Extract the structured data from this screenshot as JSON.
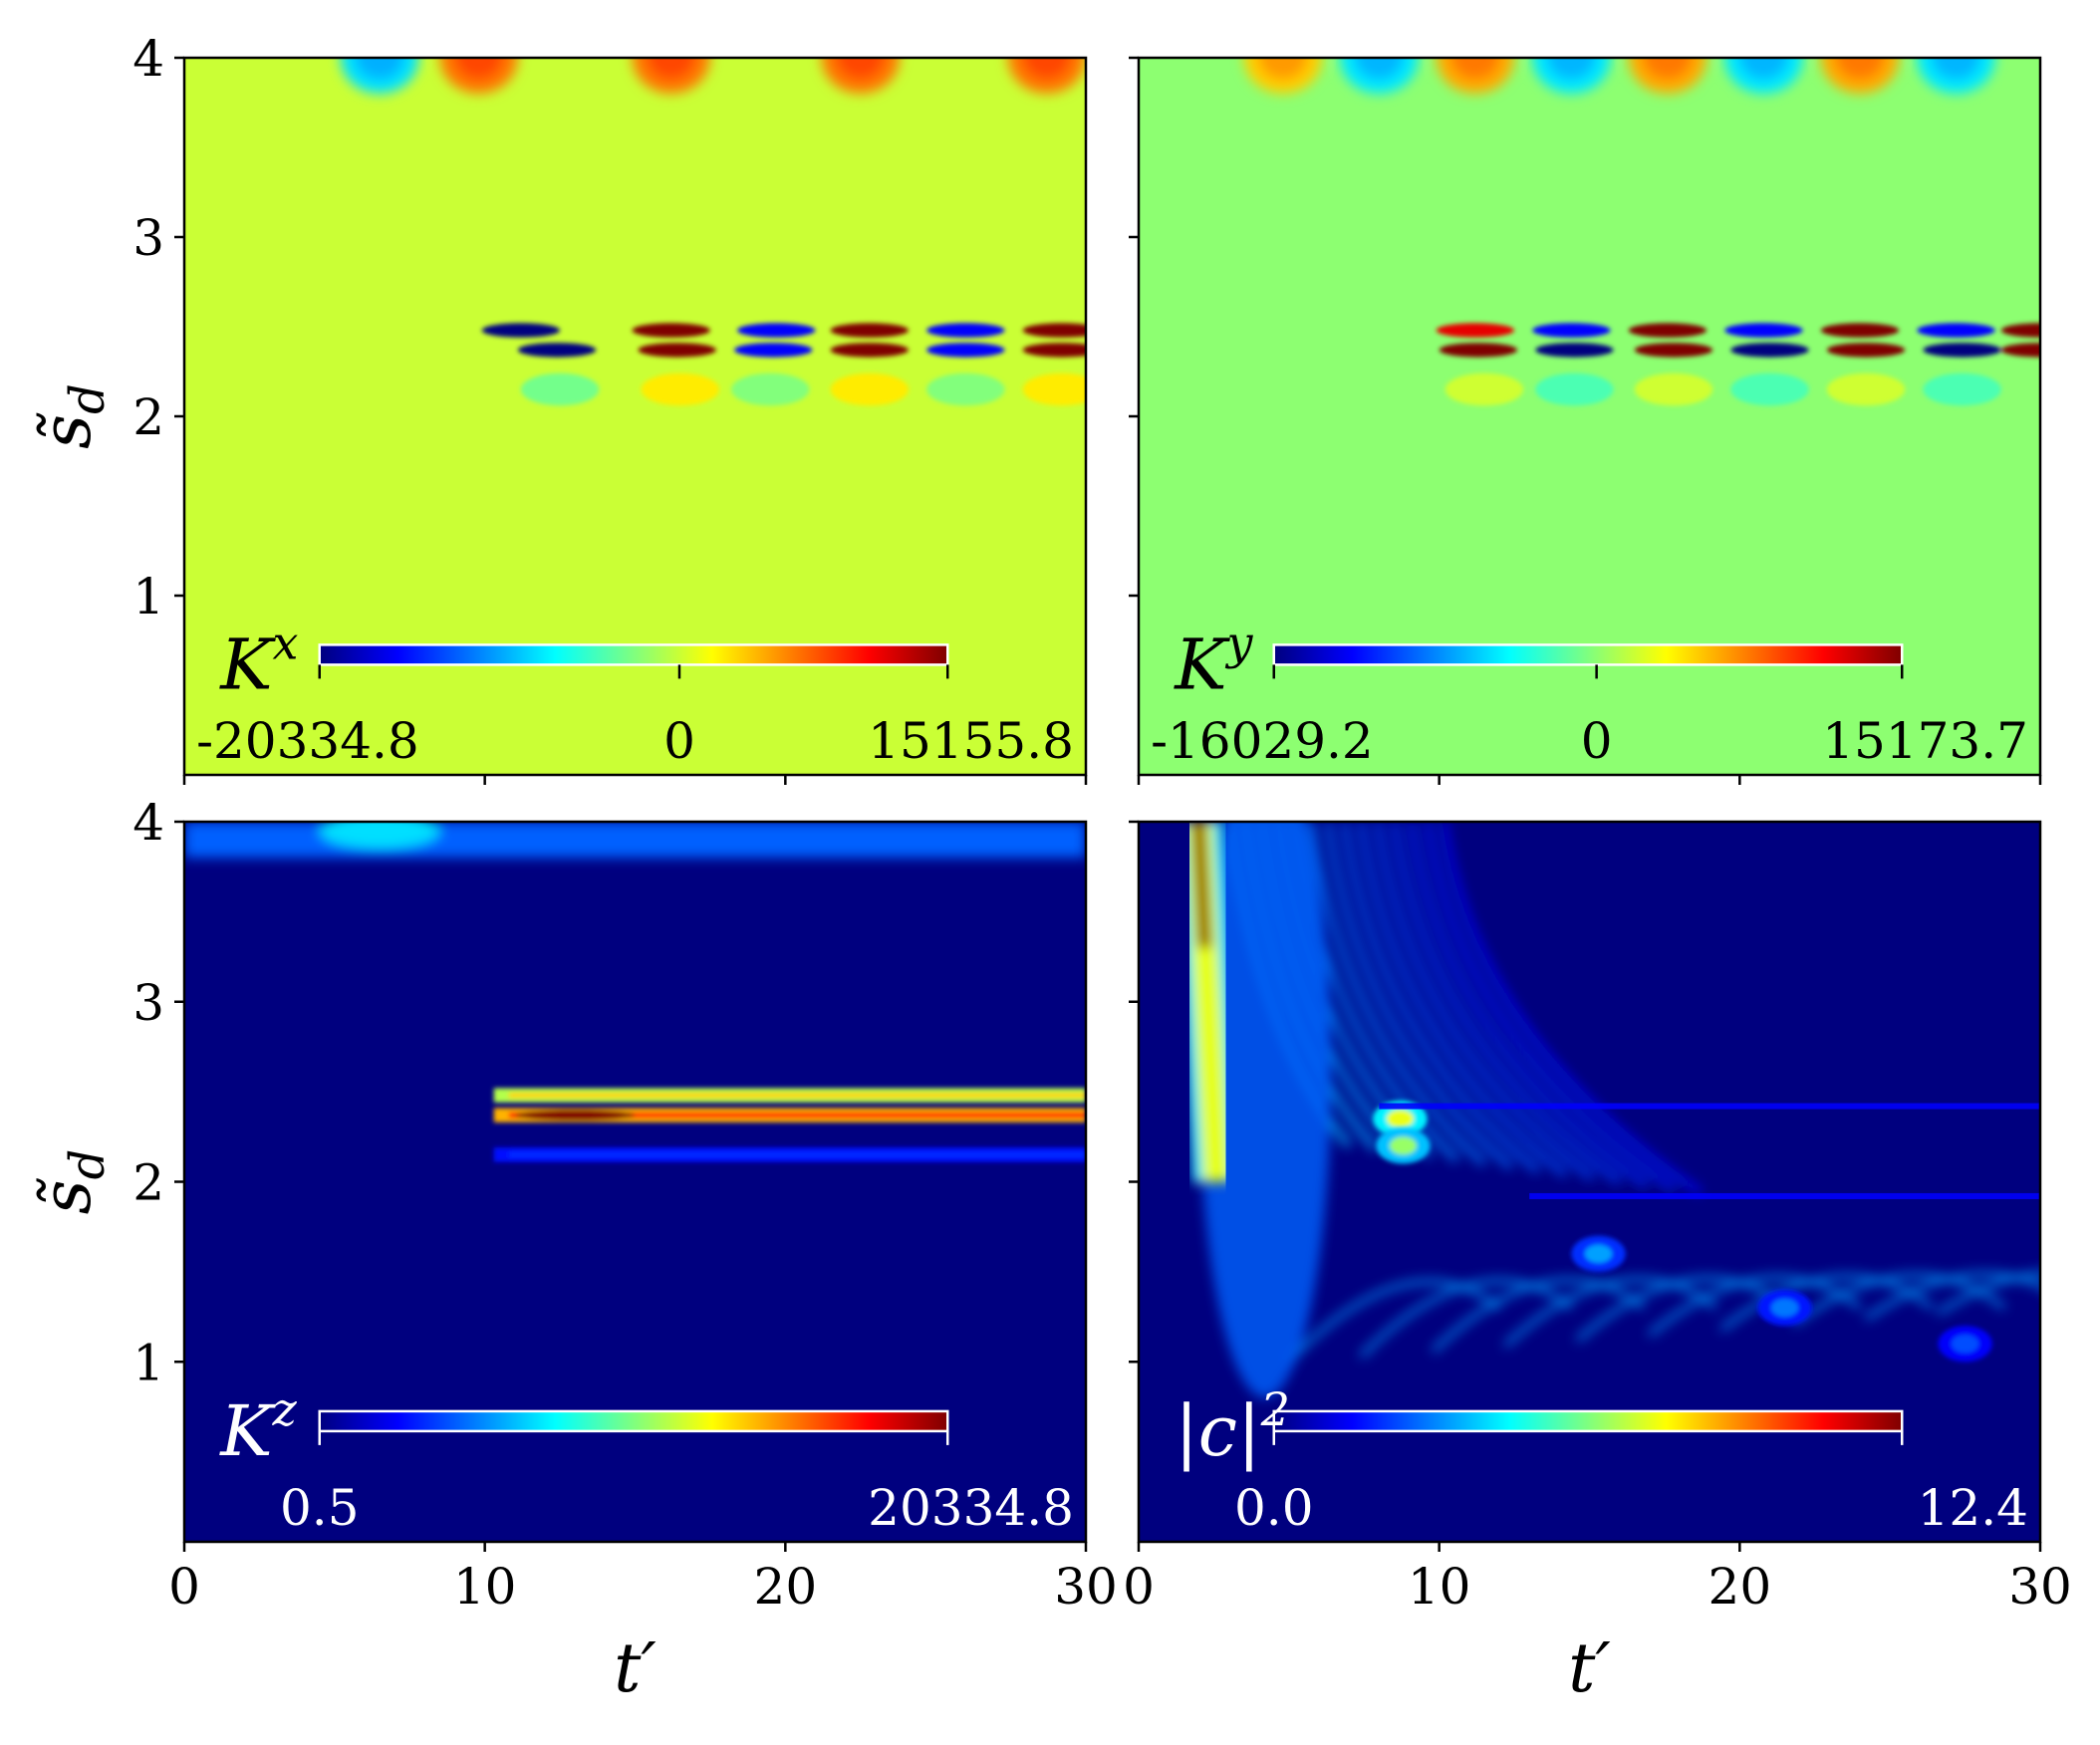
{
  "colormap": {
    "name": "jet",
    "stops": [
      "#00007f",
      "#0000ff",
      "#007fff",
      "#00ffff",
      "#7fff7f",
      "#ffff00",
      "#ff7f00",
      "#ff0000",
      "#7f0000"
    ]
  },
  "chart_data": [
    {
      "type": "heatmap",
      "panel": "top-left",
      "xlim": [
        0,
        30
      ],
      "ylim": [
        0,
        4
      ],
      "yticks": [
        1,
        2,
        3,
        4
      ],
      "ylabel": "s̃_d",
      "xlabel": "",
      "colorbar": {
        "label": "K^x",
        "label_base": "K",
        "label_sup": "x",
        "ticks": [
          "-20334.8",
          "0",
          "15155.8"
        ],
        "vmin": -20334.8,
        "vmax": 15155.8,
        "text_color": "#000000"
      },
      "background_value": 0,
      "features": [
        {
          "kind": "top-lobes",
          "y": 4.0,
          "x": [
            6.5,
            9.8,
            16.2,
            22.5,
            28.7
          ],
          "values": [
            -8000,
            6500,
            6500,
            6500,
            6500
          ]
        },
        {
          "kind": "stripe-row",
          "y": 2.48,
          "x_start": 10.5,
          "x": [
            11.2,
            16.2,
            19.7,
            22.8,
            26.0,
            29.2
          ],
          "values": [
            -20334.8,
            15155.8,
            -16000,
            15155.8,
            -16000,
            15155.8
          ]
        },
        {
          "kind": "stripe-row",
          "y": 2.37,
          "x_start": 10.5,
          "x": [
            12.4,
            16.4,
            19.6,
            22.8,
            26.0,
            29.2
          ],
          "values": [
            -20334.8,
            15155.8,
            -16000,
            15155.8,
            -16000,
            15155.8
          ]
        },
        {
          "kind": "faint-row",
          "y": 2.15,
          "x": [
            12.5,
            16.5,
            19.5,
            22.8,
            26.0,
            29.2
          ],
          "values": [
            -3000,
            2500,
            -2500,
            2500,
            -2500,
            2500
          ]
        }
      ]
    },
    {
      "type": "heatmap",
      "panel": "top-right",
      "xlim": [
        0,
        30
      ],
      "ylim": [
        0,
        4
      ],
      "yticks": [
        1,
        2,
        3,
        4
      ],
      "ylabel": "",
      "xlabel": "",
      "colorbar": {
        "label": "K^y",
        "label_base": "K",
        "label_sup": "y",
        "ticks": [
          "-16029.2",
          "0",
          "15173.7"
        ],
        "vmin": -16029.2,
        "vmax": 15173.7,
        "text_color": "#000000"
      },
      "background_value": 0,
      "features": [
        {
          "kind": "top-lobes",
          "y": 4.0,
          "x": [
            4.8,
            8.0,
            11.2,
            14.4,
            17.6,
            20.8,
            24.0,
            27.2
          ],
          "values": [
            5000,
            -5000,
            6000,
            -5000,
            6000,
            -5000,
            6000,
            -5000
          ]
        },
        {
          "kind": "stripe-row",
          "y": 2.48,
          "x_start": 10.0,
          "x": [
            11.2,
            14.4,
            17.6,
            20.8,
            24.0,
            27.2,
            30.0
          ],
          "values": [
            12000,
            -12000,
            15173.7,
            -12000,
            15173.7,
            -12000,
            15173.7
          ]
        },
        {
          "kind": "stripe-row",
          "y": 2.37,
          "x_start": 10.0,
          "x": [
            11.3,
            14.5,
            17.8,
            21.0,
            24.2,
            27.4,
            30.0
          ],
          "values": [
            15173.7,
            -16029.2,
            15173.7,
            -16029.2,
            15173.7,
            -16029.2,
            15173.7
          ]
        },
        {
          "kind": "faint-row",
          "y": 2.15,
          "x": [
            11.5,
            14.5,
            17.8,
            21.0,
            24.2,
            27.4
          ],
          "values": [
            2000,
            -2000,
            2000,
            -2000,
            2000,
            -2000
          ]
        }
      ]
    },
    {
      "type": "heatmap",
      "panel": "bottom-left",
      "xlim": [
        0,
        30
      ],
      "ylim": [
        0,
        4
      ],
      "xticks": [
        0,
        10,
        20,
        30
      ],
      "yticks": [
        1,
        2,
        3,
        4
      ],
      "ylabel": "s̃_d",
      "xlabel": "t′",
      "colorbar": {
        "label": "K^z",
        "label_base": "K",
        "label_sup": "z",
        "ticks": [
          "0.5",
          "20334.8"
        ],
        "vmin": 0.5,
        "vmax": 20334.8,
        "text_color": "#ffffff"
      },
      "background_value": 0.5,
      "features": [
        {
          "kind": "top-glow",
          "y": 3.95,
          "x": [
            6.5
          ],
          "values": [
            7000
          ]
        },
        {
          "kind": "band",
          "y": 2.48,
          "x_start": 10.3,
          "x_end": 30,
          "value": 16000
        },
        {
          "kind": "band",
          "y": 2.37,
          "x_start": 10.3,
          "x_end": 30,
          "value": 20334.8,
          "peak_x": 13.0
        },
        {
          "kind": "band",
          "y": 2.15,
          "x_start": 10.3,
          "x_end": 30,
          "value": 4000
        }
      ]
    },
    {
      "type": "heatmap",
      "panel": "bottom-right",
      "xlim": [
        0,
        30
      ],
      "ylim": [
        0,
        4
      ],
      "xticks": [
        0,
        10,
        20,
        30
      ],
      "yticks": [
        1,
        2,
        3,
        4
      ],
      "ylabel": "",
      "xlabel": "t′",
      "colorbar": {
        "label": "|c|^2",
        "label_base": "|c|",
        "label_sup": "2",
        "ticks": [
          "0.0",
          "12.4"
        ],
        "vmin": 0.0,
        "vmax": 12.4,
        "text_color": "#ffffff"
      },
      "background_value": 0,
      "features": [
        {
          "kind": "streak",
          "from": [
            2.0,
            4.0
          ],
          "to": [
            2.6,
            2.0
          ],
          "value": 12.4
        },
        {
          "kind": "hotspot",
          "x": 8.7,
          "y": 2.35,
          "value": 7.5
        },
        {
          "kind": "hotspot",
          "x": 8.8,
          "y": 2.2,
          "value": 6.5
        },
        {
          "kind": "hotspot",
          "x": 15.3,
          "y": 1.6,
          "value": 3.5
        },
        {
          "kind": "hotspot",
          "x": 21.5,
          "y": 1.3,
          "value": 3.0
        },
        {
          "kind": "hotspot",
          "x": 27.5,
          "y": 1.1,
          "value": 2.5
        },
        {
          "kind": "line",
          "y": 2.42,
          "x_start": 8,
          "x_end": 30,
          "value": 1.5
        },
        {
          "kind": "line",
          "y": 1.92,
          "x_start": 13,
          "x_end": 30,
          "value": 1.5
        }
      ]
    }
  ]
}
